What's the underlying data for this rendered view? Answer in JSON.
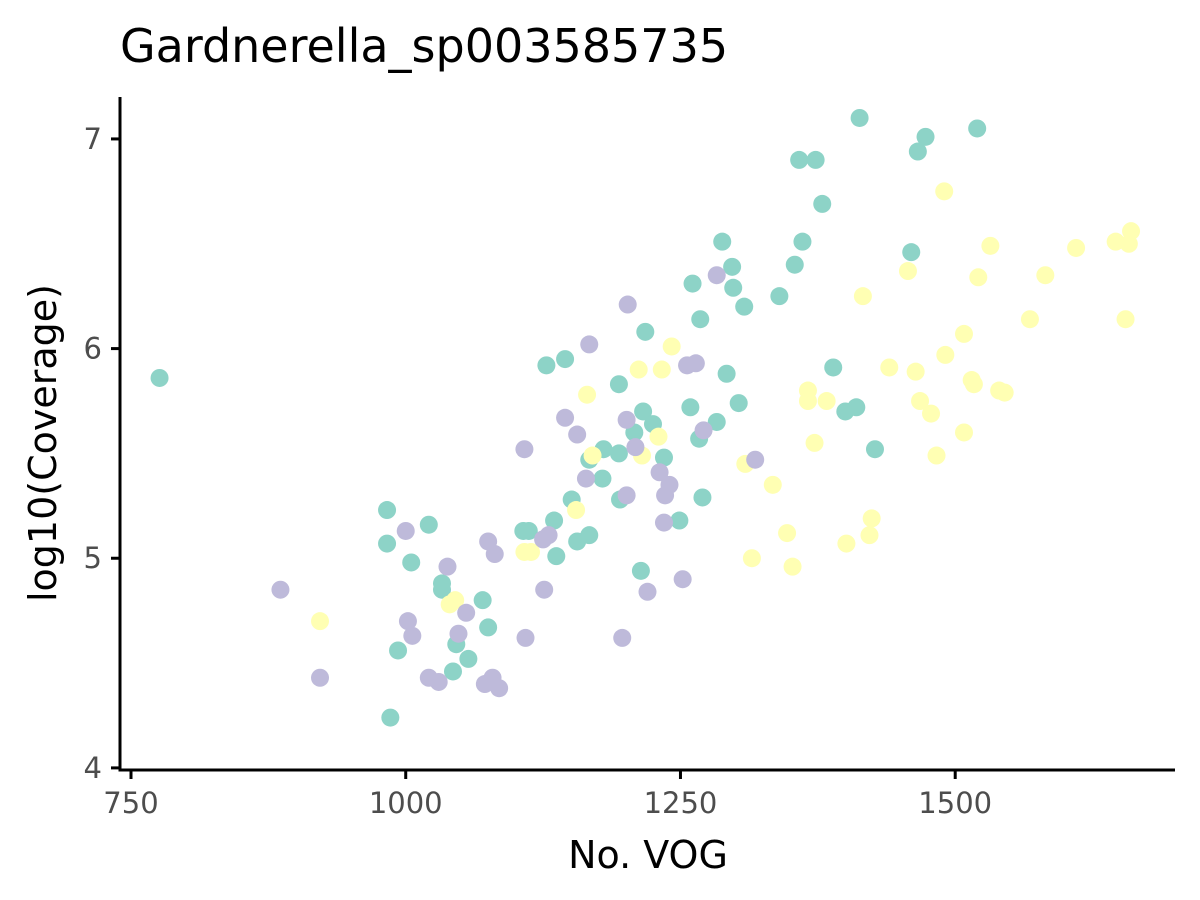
{
  "chart_data": {
    "type": "scatter",
    "title": "Gardnerella_sp003585735",
    "xlabel": "No. VOG",
    "ylabel": "log10(Coverage)",
    "xlim": [
      740,
      1700
    ],
    "ylim": [
      3.99,
      7.2
    ],
    "xticks": [
      750,
      1000,
      1250,
      1500
    ],
    "xtick_labels": [
      "750",
      "1000",
      "1250",
      "1500"
    ],
    "yticks": [
      4,
      5,
      6,
      7
    ],
    "ytick_labels": [
      "4",
      "5",
      "6",
      "7"
    ],
    "grid": false,
    "legend": "none",
    "colors": {
      "teal": "#8dd3c7",
      "yellow": "#ffffb3",
      "purple": "#bebada"
    },
    "series": [
      {
        "color": "#8dd3c7",
        "points": [
          [
            776,
            5.86
          ],
          [
            983,
            5.23
          ],
          [
            983,
            5.07
          ],
          [
            986,
            4.24
          ],
          [
            993,
            4.56
          ],
          [
            1005,
            4.98
          ],
          [
            1021,
            5.16
          ],
          [
            1033,
            4.88
          ],
          [
            1033,
            4.85
          ],
          [
            1043,
            4.46
          ],
          [
            1046,
            4.59
          ],
          [
            1057,
            4.52
          ],
          [
            1070,
            4.8
          ],
          [
            1075,
            4.67
          ],
          [
            1107,
            5.13
          ],
          [
            1112,
            5.13
          ],
          [
            1128,
            5.92
          ],
          [
            1135,
            5.18
          ],
          [
            1137,
            5.01
          ],
          [
            1145,
            5.95
          ],
          [
            1151,
            5.28
          ],
          [
            1156,
            5.08
          ],
          [
            1167,
            5.11
          ],
          [
            1167,
            5.47
          ],
          [
            1179,
            5.38
          ],
          [
            1180,
            5.52
          ],
          [
            1194,
            5.83
          ],
          [
            1194,
            5.5
          ],
          [
            1195,
            5.28
          ],
          [
            1208,
            5.6
          ],
          [
            1214,
            4.94
          ],
          [
            1216,
            5.7
          ],
          [
            1218,
            6.08
          ],
          [
            1225,
            5.64
          ],
          [
            1235,
            5.48
          ],
          [
            1249,
            5.18
          ],
          [
            1259,
            5.72
          ],
          [
            1261,
            6.31
          ],
          [
            1267,
            5.57
          ],
          [
            1268,
            6.14
          ],
          [
            1270,
            5.29
          ],
          [
            1283,
            5.65
          ],
          [
            1288,
            6.51
          ],
          [
            1292,
            5.88
          ],
          [
            1297,
            6.39
          ],
          [
            1298,
            6.29
          ],
          [
            1303,
            5.74
          ],
          [
            1308,
            6.2
          ],
          [
            1340,
            6.25
          ],
          [
            1354,
            6.4
          ],
          [
            1358,
            6.9
          ],
          [
            1361,
            6.51
          ],
          [
            1373,
            6.9
          ],
          [
            1379,
            6.69
          ],
          [
            1389,
            5.91
          ],
          [
            1400,
            5.7
          ],
          [
            1410,
            5.72
          ],
          [
            1413,
            7.1
          ],
          [
            1427,
            5.52
          ],
          [
            1460,
            6.46
          ],
          [
            1466,
            6.94
          ],
          [
            1473,
            7.01
          ],
          [
            1520,
            7.05
          ]
        ]
      },
      {
        "color": "#ffffb3",
        "points": [
          [
            922,
            4.7
          ],
          [
            1040,
            4.78
          ],
          [
            1045,
            4.8
          ],
          [
            1108,
            5.03
          ],
          [
            1114,
            5.03
          ],
          [
            1155,
            5.23
          ],
          [
            1165,
            5.78
          ],
          [
            1170,
            5.49
          ],
          [
            1212,
            5.9
          ],
          [
            1215,
            5.49
          ],
          [
            1230,
            5.58
          ],
          [
            1233,
            5.9
          ],
          [
            1242,
            6.01
          ],
          [
            1309,
            5.45
          ],
          [
            1315,
            5.0
          ],
          [
            1334,
            5.35
          ],
          [
            1347,
            5.12
          ],
          [
            1352,
            4.96
          ],
          [
            1366,
            5.8
          ],
          [
            1366,
            5.75
          ],
          [
            1372,
            5.55
          ],
          [
            1383,
            5.75
          ],
          [
            1401,
            5.07
          ],
          [
            1416,
            6.25
          ],
          [
            1422,
            5.11
          ],
          [
            1424,
            5.19
          ],
          [
            1440,
            5.91
          ],
          [
            1457,
            6.37
          ],
          [
            1464,
            5.89
          ],
          [
            1468,
            5.75
          ],
          [
            1478,
            5.69
          ],
          [
            1483,
            5.49
          ],
          [
            1490,
            6.75
          ],
          [
            1491,
            5.97
          ],
          [
            1508,
            6.07
          ],
          [
            1508,
            5.6
          ],
          [
            1515,
            5.85
          ],
          [
            1517,
            5.83
          ],
          [
            1521,
            6.34
          ],
          [
            1532,
            6.49
          ],
          [
            1540,
            5.8
          ],
          [
            1545,
            5.79
          ],
          [
            1568,
            6.14
          ],
          [
            1582,
            6.35
          ],
          [
            1610,
            6.48
          ],
          [
            1646,
            6.51
          ],
          [
            1655,
            6.14
          ],
          [
            1658,
            6.5
          ],
          [
            1660,
            6.56
          ]
        ]
      },
      {
        "color": "#bebada",
        "points": [
          [
            886,
            4.85
          ],
          [
            922,
            4.43
          ],
          [
            1000,
            5.13
          ],
          [
            1002,
            4.7
          ],
          [
            1006,
            4.63
          ],
          [
            1021,
            4.43
          ],
          [
            1030,
            4.41
          ],
          [
            1038,
            4.96
          ],
          [
            1048,
            4.64
          ],
          [
            1055,
            4.74
          ],
          [
            1072,
            4.4
          ],
          [
            1075,
            5.08
          ],
          [
            1079,
            4.43
          ],
          [
            1081,
            5.02
          ],
          [
            1085,
            4.38
          ],
          [
            1108,
            5.52
          ],
          [
            1109,
            4.62
          ],
          [
            1125,
            5.09
          ],
          [
            1126,
            4.85
          ],
          [
            1130,
            5.11
          ],
          [
            1145,
            5.67
          ],
          [
            1156,
            5.59
          ],
          [
            1164,
            5.38
          ],
          [
            1167,
            6.02
          ],
          [
            1197,
            4.62
          ],
          [
            1201,
            5.66
          ],
          [
            1201,
            5.3
          ],
          [
            1202,
            6.21
          ],
          [
            1209,
            5.53
          ],
          [
            1220,
            4.84
          ],
          [
            1231,
            5.41
          ],
          [
            1235,
            5.17
          ],
          [
            1236,
            5.3
          ],
          [
            1240,
            5.35
          ],
          [
            1252,
            4.9
          ],
          [
            1256,
            5.92
          ],
          [
            1264,
            5.93
          ],
          [
            1271,
            5.61
          ],
          [
            1283,
            6.35
          ],
          [
            1318,
            5.47
          ]
        ]
      }
    ]
  }
}
